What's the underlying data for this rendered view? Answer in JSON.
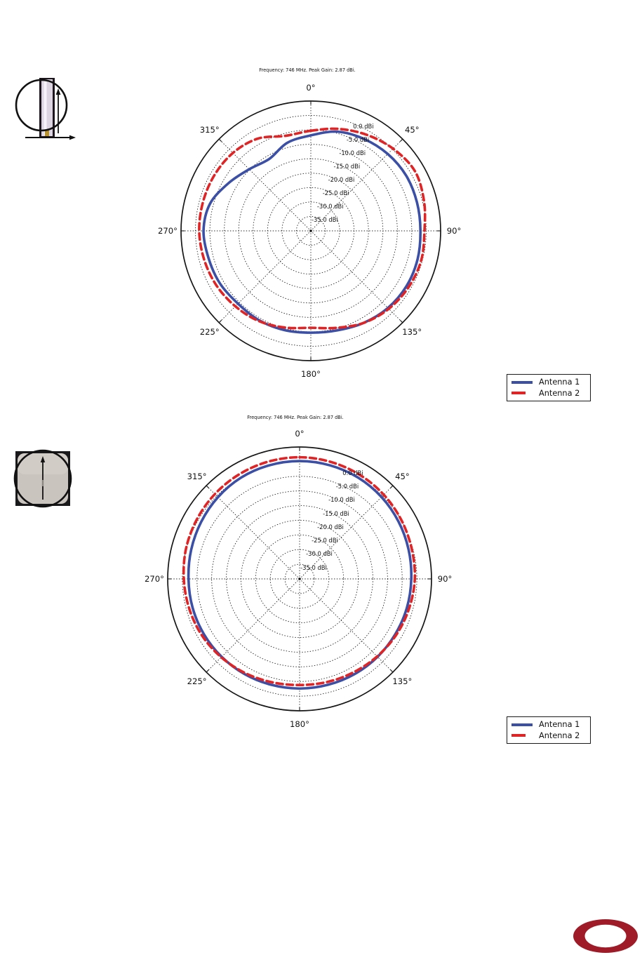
{
  "page": {
    "background": "#ffffff"
  },
  "colors": {
    "antenna1": "#3a4fa5",
    "antenna2": "#e02426",
    "grid": "#1a1a1a",
    "logo_red": "#9e1b27"
  },
  "icons": {
    "plot1_orientation": "vertical-antenna-front-view-with-up-arrow-and-right-arrow",
    "plot2_orientation": "antenna-top-view-square-with-up-arrow",
    "bottom_right": "red-oval-logo"
  },
  "chart_data": [
    {
      "type": "line",
      "subtype": "polar",
      "title": "Frequency: 746 MHz. Peak Gain: 2.87 dBi.",
      "units": "dBi",
      "r_min": -40,
      "r_max": 5,
      "ring_values": [
        0,
        -5,
        -10,
        -15,
        -20,
        -25,
        -30,
        -35
      ],
      "ring_labels": [
        "0.0 dBi",
        "-5.0 dBi",
        "-10.0 dBi",
        "-15.0 dBi",
        "-20.0 dBi",
        "-25.0 dBi",
        "-30.0 dBi",
        "-35.0 dBi"
      ],
      "angle_ticks_deg": [
        0,
        45,
        90,
        135,
        180,
        225,
        270,
        315
      ],
      "angle_tick_labels": [
        "0°",
        "45°",
        "90°",
        "135°",
        "180°",
        "225°",
        "270°",
        "315°"
      ],
      "grid": "dotted",
      "legend_position": "below-right",
      "angles_deg": [
        0,
        15,
        30,
        45,
        60,
        75,
        90,
        105,
        120,
        135,
        150,
        165,
        180,
        195,
        210,
        225,
        240,
        255,
        270,
        285,
        300,
        315,
        330,
        345
      ],
      "series": [
        {
          "name": "Antenna 1",
          "line_style": "solid",
          "gain_dbi": [
            -6.9,
            -4.4,
            -3.2,
            -2.3,
            -1.8,
            -1.9,
            -2.0,
            -1.7,
            -1.7,
            -2.2,
            -3.2,
            -4.3,
            -4.7,
            -4.4,
            -4.2,
            -4.3,
            -3.6,
            -3.3,
            -2.8,
            -3.8,
            -7.0,
            -9.8,
            -11.2,
            -8.4
          ]
        },
        {
          "name": "Antenna 2",
          "line_style": "dashed",
          "gain_dbi": [
            -5.3,
            -3.4,
            -1.5,
            0.3,
            1.6,
            0.6,
            -0.6,
            -0.4,
            -0.9,
            -1.8,
            -3.2,
            -5.2,
            -6.4,
            -5.3,
            -3.9,
            -3.0,
            -2.2,
            -1.7,
            -1.3,
            -1.3,
            -1.4,
            -1.8,
            -3.1,
            -5.9
          ]
        }
      ]
    },
    {
      "type": "line",
      "subtype": "polar",
      "title": "Frequency: 746 MHz. Peak Gain: 2.87 dBi.",
      "units": "dBi",
      "r_min": -40,
      "r_max": 5,
      "ring_values": [
        0,
        -5,
        -10,
        -15,
        -20,
        -25,
        -30,
        -35
      ],
      "ring_labels": [
        "0.0 dBi",
        "-5.0 dBi",
        "-10.0 dBi",
        "-15.0 dBi",
        "-20.0 dBi",
        "-25.0 dBi",
        "-30.0 dBi",
        "-35.0 dBi"
      ],
      "angle_ticks_deg": [
        0,
        45,
        90,
        135,
        180,
        225,
        270,
        315
      ],
      "angle_tick_labels": [
        "0°",
        "45°",
        "90°",
        "135°",
        "180°",
        "225°",
        "270°",
        "315°"
      ],
      "grid": "dotted",
      "legend_position": "below-right",
      "angles_deg": [
        0,
        15,
        30,
        45,
        60,
        75,
        90,
        105,
        120,
        135,
        150,
        165,
        180,
        195,
        210,
        225,
        240,
        255,
        270,
        285,
        300,
        315,
        330,
        345
      ],
      "series": [
        {
          "name": "Antenna 1",
          "line_style": "solid",
          "gain_dbi": [
            0.2,
            0.1,
            -0.1,
            -0.5,
            -1.0,
            -1.5,
            -1.9,
            -2.1,
            -2.3,
            -2.4,
            -2.5,
            -2.6,
            -2.6,
            -2.6,
            -2.5,
            -2.4,
            -2.3,
            -2.2,
            -2.1,
            -1.7,
            -1.2,
            -0.6,
            -0.1,
            0.1
          ]
        },
        {
          "name": "Antenna 2",
          "line_style": "dashed",
          "gain_dbi": [
            1.5,
            1.3,
            1.0,
            0.6,
            0.1,
            -0.4,
            -0.7,
            -1.3,
            -1.9,
            -2.6,
            -3.2,
            -3.6,
            -3.8,
            -3.5,
            -2.9,
            -2.2,
            -1.5,
            -1.0,
            -0.5,
            0.1,
            0.5,
            0.9,
            1.2,
            1.4
          ]
        }
      ]
    }
  ]
}
